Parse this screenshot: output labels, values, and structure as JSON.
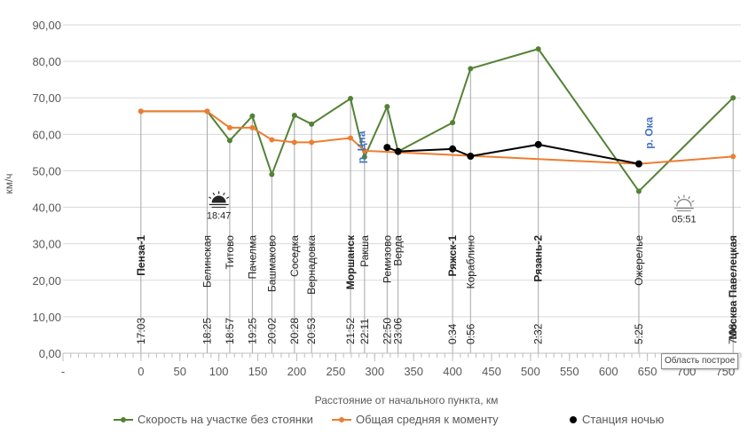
{
  "chart_data": {
    "type": "line",
    "title": "",
    "xlabel": "Расстояние от начального пункта, км",
    "ylabel": "км/ч",
    "xlim": [
      -100,
      770
    ],
    "ylim": [
      0,
      90
    ],
    "y_ticks": [
      "0,00",
      "10,00",
      "20,00",
      "30,00",
      "40,00",
      "50,00",
      "60,00",
      "70,00",
      "80,00",
      "90,00"
    ],
    "y_tick_values": [
      0,
      10,
      20,
      30,
      40,
      50,
      60,
      70,
      80,
      90
    ],
    "x_ticks": [
      "-",
      "0",
      "50",
      "100",
      "150",
      "200",
      "250",
      "300",
      "350",
      "400",
      "450",
      "500",
      "550",
      "600",
      "650",
      "700",
      "750"
    ],
    "x_tick_values": [
      -100,
      0,
      50,
      100,
      150,
      200,
      250,
      300,
      350,
      400,
      450,
      500,
      550,
      600,
      650,
      700,
      750
    ],
    "legend_position": "bottom",
    "grid": "horizontal",
    "series": [
      {
        "name": "Скорость на участке без стоянки",
        "color": "#548235",
        "x": [
          0,
          85,
          114,
          143,
          168,
          197,
          219,
          269,
          287,
          316,
          330,
          400,
          423,
          510,
          639,
          760
        ],
        "values": [
          66.3,
          66.3,
          58.3,
          65.0,
          49.0,
          65.2,
          62.8,
          69.8,
          53.8,
          67.6,
          55.3,
          63.2,
          78.0,
          83.4,
          44.4,
          70.0
        ]
      },
      {
        "name": "Общая средняя к моменту",
        "color": "#ed7d31",
        "x": [
          0,
          85,
          114,
          143,
          168,
          197,
          219,
          269,
          287,
          639,
          760
        ],
        "values": [
          66.3,
          66.3,
          61.8,
          61.8,
          58.5,
          57.8,
          57.8,
          59.0,
          55.5,
          51.9,
          53.9
        ]
      },
      {
        "name": "Станция ночью",
        "color": "#000000",
        "x": [
          316,
          330,
          400,
          423,
          510,
          639
        ],
        "values": [
          56.4,
          55.3,
          56.0,
          54.0,
          57.2,
          51.9
        ]
      }
    ],
    "stations": [
      {
        "name": "Пенза-1",
        "time": "17:03",
        "x": 0,
        "bold": true
      },
      {
        "name": "Белинская",
        "time": "18:25",
        "x": 85,
        "bold": false
      },
      {
        "name": "Титово",
        "time": "18:57",
        "x": 114,
        "bold": false
      },
      {
        "name": "Пачелма",
        "time": "19:25",
        "x": 143,
        "bold": false
      },
      {
        "name": "Башмаково",
        "time": "20:02",
        "x": 168,
        "bold": false
      },
      {
        "name": "Соседка",
        "time": "20:28",
        "x": 197,
        "bold": false
      },
      {
        "name": "Вернадовка",
        "time": "20:53",
        "x": 219,
        "bold": false
      },
      {
        "name": "Моршанск",
        "time": "21:52",
        "x": 269,
        "bold": true
      },
      {
        "name": "Ракша",
        "time": "22:11",
        "x": 287,
        "bold": false
      },
      {
        "name": "Ремизово",
        "time": "22:50",
        "x": 316,
        "bold": false
      },
      {
        "name": "Верда",
        "time": "23:06",
        "x": 330,
        "bold": false
      },
      {
        "name": "Ряжск-1",
        "time": "0:34",
        "x": 400,
        "bold": true
      },
      {
        "name": "Кораблино",
        "time": "0:56",
        "x": 423,
        "bold": false
      },
      {
        "name": "Рязань-2",
        "time": "2:32",
        "x": 510,
        "bold": true
      },
      {
        "name": "Ожерелье",
        "time": "5:25",
        "x": 639,
        "bold": false
      },
      {
        "name": "Москва Павелецкая",
        "time": "7:08",
        "x": 760,
        "bold": true
      }
    ],
    "annotations": [
      {
        "type": "sunset",
        "icon": "sunset-icon",
        "time": "18:47",
        "x": 100,
        "y": 40.5
      },
      {
        "type": "sunrise",
        "icon": "sunrise-icon",
        "time": "05:51",
        "x": 697,
        "y": 39.5
      },
      {
        "type": "river",
        "text": "р. Цна",
        "x": 283,
        "y": 52,
        "color": "#4472c4"
      },
      {
        "type": "river",
        "text": "р. Ока",
        "x": 652,
        "y": 56,
        "color": "#4472c4"
      }
    ]
  },
  "tooltip": "Область построе"
}
